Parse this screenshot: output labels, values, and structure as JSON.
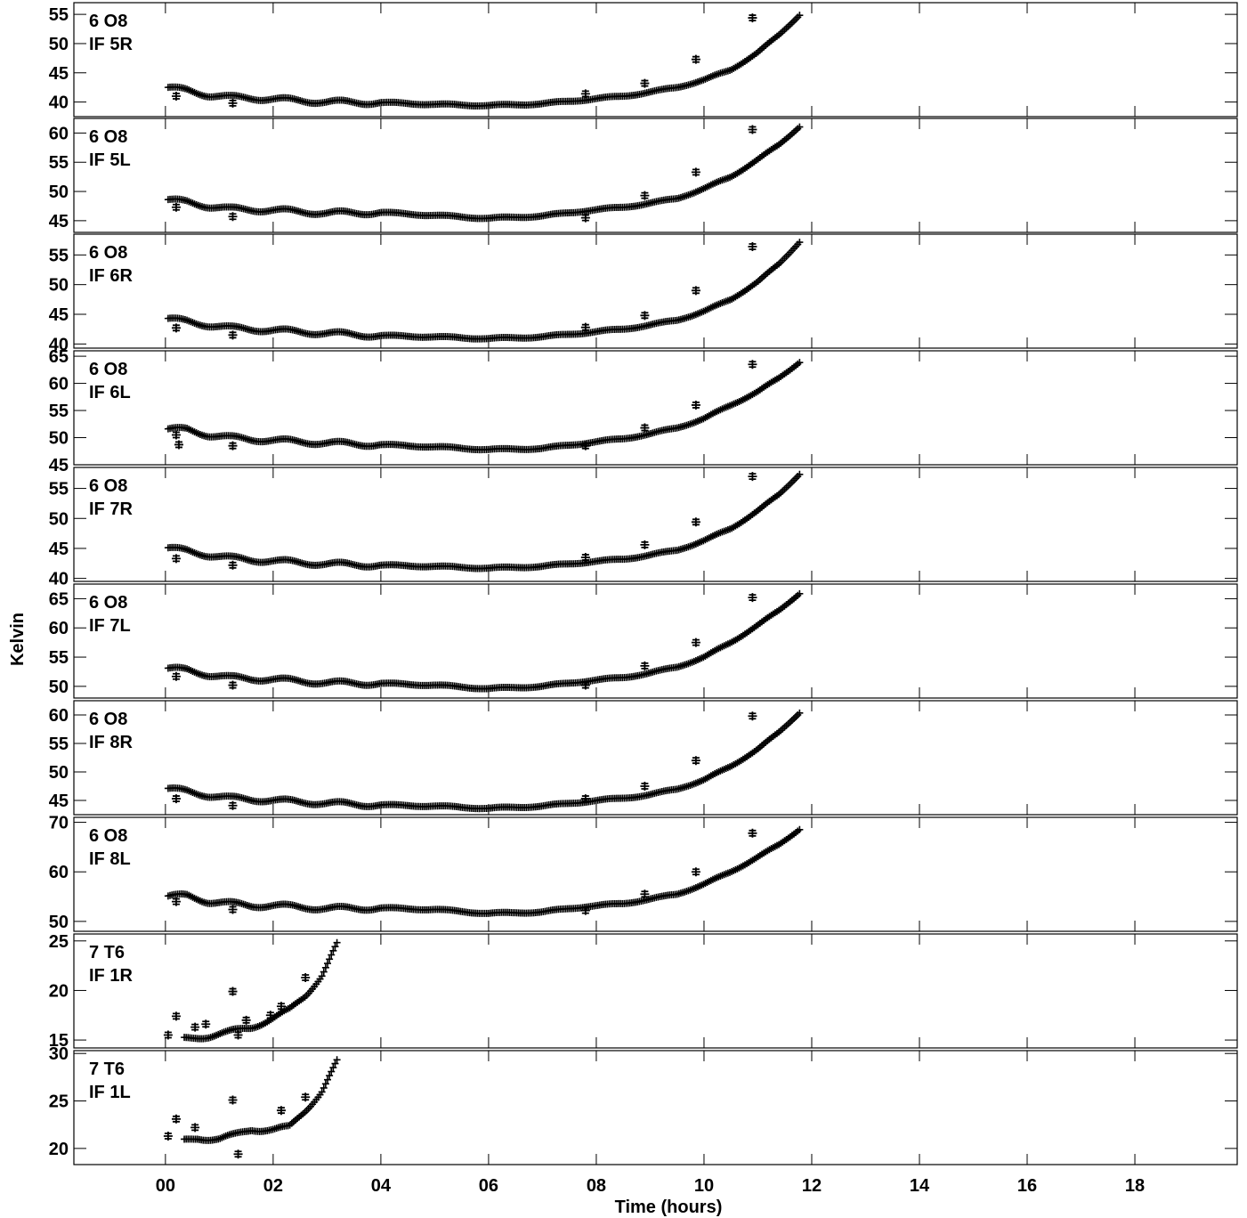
{
  "chart_data": {
    "type": "scatter",
    "xlabel": "Time (hours)",
    "ylabel": "Kelvin",
    "xlim": [
      -1.7,
      19.9
    ],
    "x_ticks": [
      "00",
      "02",
      "04",
      "06",
      "08",
      "10",
      "12",
      "14",
      "16",
      "18"
    ],
    "x_tick_values": [
      0,
      2,
      4,
      6,
      8,
      10,
      12,
      14,
      16,
      18
    ],
    "marker": "+",
    "color": "#000000",
    "grid": false,
    "panels": [
      {
        "label1": "6 O8",
        "label2": "IF 5R",
        "ylim": [
          37.5,
          57
        ],
        "yticks": [
          40,
          45,
          50,
          55
        ],
        "curve": [
          [
            0.05,
            42.4
          ],
          [
            0.4,
            42.0
          ],
          [
            0.8,
            41.2
          ],
          [
            1.2,
            40.8
          ],
          [
            1.6,
            40.7
          ],
          [
            2.0,
            40.5
          ],
          [
            3.0,
            40.0
          ],
          [
            4.0,
            39.9
          ],
          [
            5.0,
            39.6
          ],
          [
            6.0,
            39.4
          ],
          [
            7.0,
            39.7
          ],
          [
            7.8,
            40.4
          ],
          [
            8.5,
            41.0
          ],
          [
            9.0,
            41.7
          ],
          [
            9.5,
            42.5
          ],
          [
            10.0,
            43.8
          ],
          [
            10.5,
            45.5
          ],
          [
            11.0,
            48.5
          ],
          [
            11.4,
            51.5
          ],
          [
            11.78,
            55.0
          ]
        ],
        "outliers": [
          [
            0.2,
            41.0
          ],
          [
            1.25,
            39.8
          ],
          [
            7.8,
            41.4
          ],
          [
            8.9,
            43.2
          ],
          [
            9.85,
            47.3
          ],
          [
            10.9,
            54.4
          ]
        ]
      },
      {
        "label1": "6 O8",
        "label2": "IF 5L",
        "ylim": [
          43,
          62.5
        ],
        "yticks": [
          45,
          50,
          55,
          60
        ],
        "curve": [
          [
            0.05,
            48.5
          ],
          [
            0.4,
            48.2
          ],
          [
            0.8,
            47.5
          ],
          [
            1.2,
            47.0
          ],
          [
            1.6,
            46.9
          ],
          [
            2.0,
            46.8
          ],
          [
            3.0,
            46.3
          ],
          [
            4.0,
            46.4
          ],
          [
            5.0,
            45.9
          ],
          [
            6.0,
            45.4
          ],
          [
            7.0,
            45.8
          ],
          [
            7.8,
            46.7
          ],
          [
            8.5,
            47.3
          ],
          [
            9.0,
            48.0
          ],
          [
            9.5,
            48.8
          ],
          [
            10.0,
            50.5
          ],
          [
            10.5,
            52.5
          ],
          [
            11.0,
            55.5
          ],
          [
            11.4,
            58.0
          ],
          [
            11.78,
            61.2
          ]
        ],
        "outliers": [
          [
            0.2,
            47.3
          ],
          [
            1.25,
            45.7
          ],
          [
            7.8,
            45.5
          ],
          [
            8.9,
            49.3
          ],
          [
            9.85,
            53.3
          ],
          [
            10.9,
            60.6
          ]
        ]
      },
      {
        "label1": "6 O8",
        "label2": "IF 6R",
        "ylim": [
          39.3,
          58.5
        ],
        "yticks": [
          40,
          45,
          50,
          55
        ],
        "curve": [
          [
            0.05,
            44.2
          ],
          [
            0.4,
            43.8
          ],
          [
            0.8,
            43.2
          ],
          [
            1.2,
            42.7
          ],
          [
            1.6,
            42.5
          ],
          [
            2.0,
            42.3
          ],
          [
            3.0,
            41.8
          ],
          [
            4.0,
            41.4
          ],
          [
            5.0,
            41.2
          ],
          [
            6.0,
            40.9
          ],
          [
            7.0,
            41.2
          ],
          [
            7.8,
            41.9
          ],
          [
            8.5,
            42.5
          ],
          [
            9.0,
            43.2
          ],
          [
            9.5,
            44.0
          ],
          [
            10.0,
            45.5
          ],
          [
            10.5,
            47.5
          ],
          [
            11.0,
            50.5
          ],
          [
            11.4,
            53.5
          ],
          [
            11.78,
            57.3
          ]
        ],
        "outliers": [
          [
            0.2,
            42.7
          ],
          [
            1.25,
            41.5
          ],
          [
            7.8,
            42.8
          ],
          [
            8.9,
            44.8
          ],
          [
            9.85,
            49.0
          ],
          [
            10.9,
            56.4
          ]
        ]
      },
      {
        "label1": "6 O8",
        "label2": "IF 6L",
        "ylim": [
          45,
          66
        ],
        "yticks": [
          45,
          50,
          55,
          60,
          65
        ],
        "curve": [
          [
            0.05,
            51.5
          ],
          [
            0.4,
            51.5
          ],
          [
            0.8,
            50.5
          ],
          [
            1.2,
            50.0
          ],
          [
            1.6,
            49.7
          ],
          [
            2.0,
            49.5
          ],
          [
            3.0,
            49.0
          ],
          [
            4.0,
            48.7
          ],
          [
            5.0,
            48.3
          ],
          [
            6.0,
            47.8
          ],
          [
            7.0,
            48.0
          ],
          [
            7.8,
            49.0
          ],
          [
            8.5,
            49.8
          ],
          [
            9.0,
            50.7
          ],
          [
            9.5,
            51.8
          ],
          [
            10.0,
            53.5
          ],
          [
            10.5,
            56.0
          ],
          [
            11.0,
            58.5
          ],
          [
            11.4,
            61.0
          ],
          [
            11.78,
            64.0
          ]
        ],
        "outliers": [
          [
            0.2,
            50.5
          ],
          [
            0.25,
            48.7
          ],
          [
            1.25,
            48.5
          ],
          [
            7.8,
            48.5
          ],
          [
            8.9,
            51.8
          ],
          [
            9.85,
            56.0
          ],
          [
            10.9,
            63.5
          ]
        ]
      },
      {
        "label1": "6 O8",
        "label2": "IF 7R",
        "ylim": [
          39.5,
          58.5
        ],
        "yticks": [
          40,
          45,
          50,
          55
        ],
        "curve": [
          [
            0.05,
            45.0
          ],
          [
            0.4,
            44.6
          ],
          [
            0.8,
            43.9
          ],
          [
            1.2,
            43.4
          ],
          [
            1.6,
            43.1
          ],
          [
            2.0,
            42.9
          ],
          [
            3.0,
            42.4
          ],
          [
            4.0,
            42.2
          ],
          [
            5.0,
            42.0
          ],
          [
            6.0,
            41.7
          ],
          [
            7.0,
            42.0
          ],
          [
            7.8,
            42.7
          ],
          [
            8.5,
            43.2
          ],
          [
            9.0,
            43.9
          ],
          [
            9.5,
            44.7
          ],
          [
            10.0,
            46.3
          ],
          [
            10.5,
            48.3
          ],
          [
            11.0,
            51.3
          ],
          [
            11.4,
            54.0
          ],
          [
            11.78,
            57.5
          ]
        ],
        "outliers": [
          [
            0.2,
            43.3
          ],
          [
            1.25,
            42.2
          ],
          [
            7.8,
            43.5
          ],
          [
            8.9,
            45.6
          ],
          [
            9.85,
            49.4
          ],
          [
            10.9,
            57.0
          ]
        ]
      },
      {
        "label1": "6 O8",
        "label2": "IF 7L",
        "ylim": [
          48,
          67.5
        ],
        "yticks": [
          50,
          55,
          60,
          65
        ],
        "curve": [
          [
            0.05,
            53.0
          ],
          [
            0.4,
            52.8
          ],
          [
            0.8,
            52.0
          ],
          [
            1.2,
            51.5
          ],
          [
            1.6,
            51.3
          ],
          [
            2.0,
            51.2
          ],
          [
            3.0,
            50.6
          ],
          [
            4.0,
            50.5
          ],
          [
            5.0,
            50.2
          ],
          [
            6.0,
            49.6
          ],
          [
            7.0,
            50.0
          ],
          [
            7.8,
            50.9
          ],
          [
            8.5,
            51.5
          ],
          [
            9.0,
            52.3
          ],
          [
            9.5,
            53.3
          ],
          [
            10.0,
            55.0
          ],
          [
            10.5,
            57.5
          ],
          [
            11.0,
            60.5
          ],
          [
            11.4,
            63.0
          ],
          [
            11.78,
            66.0
          ]
        ],
        "outliers": [
          [
            0.2,
            51.7
          ],
          [
            1.25,
            50.2
          ],
          [
            7.8,
            50.2
          ],
          [
            8.9,
            53.5
          ],
          [
            9.85,
            57.5
          ],
          [
            10.9,
            65.2
          ]
        ]
      },
      {
        "label1": "6 O8",
        "label2": "IF 8R",
        "ylim": [
          42.5,
          62.5
        ],
        "yticks": [
          45,
          50,
          55,
          60
        ],
        "curve": [
          [
            0.05,
            47.0
          ],
          [
            0.4,
            46.6
          ],
          [
            0.8,
            45.9
          ],
          [
            1.2,
            45.4
          ],
          [
            1.6,
            45.2
          ],
          [
            2.0,
            45.0
          ],
          [
            3.0,
            44.5
          ],
          [
            4.0,
            44.2
          ],
          [
            5.0,
            44.0
          ],
          [
            6.0,
            43.6
          ],
          [
            7.0,
            44.0
          ],
          [
            7.8,
            44.8
          ],
          [
            8.5,
            45.4
          ],
          [
            9.0,
            46.0
          ],
          [
            9.5,
            47.0
          ],
          [
            10.0,
            48.6
          ],
          [
            10.5,
            51.0
          ],
          [
            11.0,
            54.0
          ],
          [
            11.4,
            57.0
          ],
          [
            11.78,
            60.5
          ]
        ],
        "outliers": [
          [
            0.2,
            45.3
          ],
          [
            1.25,
            44.1
          ],
          [
            7.8,
            45.3
          ],
          [
            8.9,
            47.5
          ],
          [
            9.85,
            52.0
          ],
          [
            10.9,
            59.8
          ]
        ]
      },
      {
        "label1": "6 O8",
        "label2": "IF 8L",
        "ylim": [
          48,
          71
        ],
        "yticks": [
          50,
          60,
          70
        ],
        "curve": [
          [
            0.05,
            55.0
          ],
          [
            0.4,
            55.2
          ],
          [
            0.8,
            54.0
          ],
          [
            1.2,
            53.6
          ],
          [
            1.6,
            53.2
          ],
          [
            2.0,
            53.2
          ],
          [
            3.0,
            52.6
          ],
          [
            4.0,
            52.7
          ],
          [
            5.0,
            52.4
          ],
          [
            6.0,
            51.6
          ],
          [
            7.0,
            51.9
          ],
          [
            7.8,
            53.0
          ],
          [
            8.5,
            53.6
          ],
          [
            9.0,
            54.5
          ],
          [
            9.5,
            55.5
          ],
          [
            10.0,
            57.5
          ],
          [
            10.5,
            60.0
          ],
          [
            11.0,
            63.0
          ],
          [
            11.4,
            65.5
          ],
          [
            11.78,
            68.7
          ]
        ],
        "outliers": [
          [
            0.2,
            54.0
          ],
          [
            1.25,
            52.4
          ],
          [
            7.8,
            52.2
          ],
          [
            8.9,
            55.5
          ],
          [
            9.85,
            60.0
          ],
          [
            10.9,
            67.8
          ]
        ]
      },
      {
        "label1": "7 T6",
        "label2": "IF 1R",
        "ylim": [
          14.2,
          25.7
        ],
        "yticks": [
          15,
          20,
          25
        ],
        "curve": [
          [
            0.35,
            15.1
          ],
          [
            0.8,
            15.4
          ],
          [
            1.2,
            15.8
          ],
          [
            1.6,
            16.3
          ],
          [
            2.0,
            17.2
          ],
          [
            2.3,
            18.0
          ],
          [
            2.6,
            19.5
          ],
          [
            2.9,
            21.5
          ],
          [
            3.2,
            24.8
          ]
        ],
        "outliers": [
          [
            0.05,
            15.5
          ],
          [
            0.2,
            17.4
          ],
          [
            1.25,
            19.9
          ],
          [
            0.55,
            16.3
          ],
          [
            0.75,
            16.6
          ],
          [
            1.35,
            15.5
          ],
          [
            1.5,
            17.0
          ],
          [
            1.95,
            17.5
          ],
          [
            2.15,
            18.4
          ],
          [
            2.6,
            21.3
          ]
        ]
      },
      {
        "label1": "7 T6",
        "label2": "IF 1L",
        "ylim": [
          18.3,
          30.3
        ],
        "yticks": [
          20,
          25,
          30
        ],
        "curve": [
          [
            0.35,
            20.8
          ],
          [
            0.6,
            21.1
          ],
          [
            1.0,
            21.0
          ],
          [
            1.3,
            21.4
          ],
          [
            1.6,
            22.0
          ],
          [
            2.0,
            22.0
          ],
          [
            2.3,
            22.2
          ],
          [
            2.6,
            24.0
          ],
          [
            2.9,
            26.0
          ],
          [
            3.2,
            29.3
          ]
        ],
        "outliers": [
          [
            0.05,
            21.3
          ],
          [
            0.2,
            23.1
          ],
          [
            1.25,
            25.1
          ],
          [
            0.55,
            22.2
          ],
          [
            1.35,
            19.4
          ],
          [
            2.15,
            24.0
          ],
          [
            2.6,
            25.4
          ]
        ]
      }
    ]
  }
}
